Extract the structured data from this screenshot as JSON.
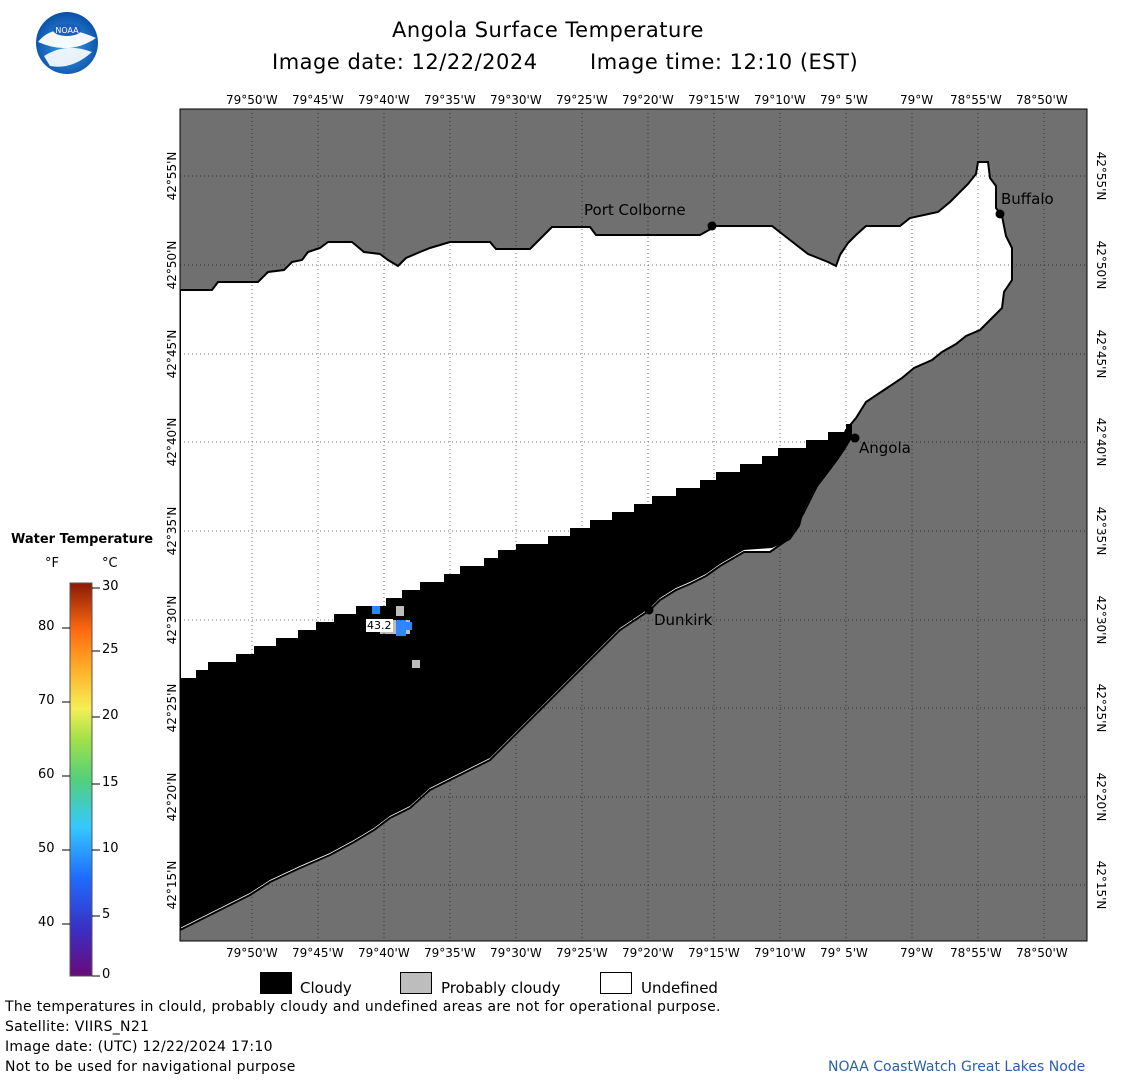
{
  "header": {
    "title": "Angola Surface Temperature",
    "image_date_label": "Image date: 12/22/2024",
    "image_time_label": "Image time: 12:10 (EST)"
  },
  "map": {
    "lon_ticks": [
      "79°50'W",
      "79°45'W",
      "79°40'W",
      "79°35'W",
      "79°30'W",
      "79°25'W",
      "79°20'W",
      "79°15'W",
      "79°10'W",
      "79° 5'W",
      "79°W",
      "78°55'W",
      "78°50'W"
    ],
    "lat_ticks": [
      "42°55'N",
      "42°50'N",
      "42°45'N",
      "42°40'N",
      "42°35'N",
      "42°30'N",
      "42°25'N",
      "42°20'N",
      "42°15'N"
    ],
    "places": [
      "Port Colborne",
      "Buffalo",
      "Angola",
      "Dunkirk"
    ],
    "data_label": "43.2",
    "colors": {
      "land": "#707070",
      "cloudy": "#000000",
      "probably_cloudy": "#bdbdbd",
      "undefined": "#ffffff",
      "water": "#2e87ff"
    }
  },
  "scale": {
    "title": "Water Temperature",
    "unit_f": "°F",
    "unit_c": "°C",
    "f_ticks": [
      "80",
      "70",
      "60",
      "50",
      "40"
    ],
    "c_ticks": [
      "30",
      "25",
      "20",
      "15",
      "10",
      "5",
      "0"
    ]
  },
  "legend": {
    "cloudy": "Cloudy",
    "probably_cloudy": "Probably cloudy",
    "undefined": "Undefined"
  },
  "footer": {
    "disclaimer": "The temperatures in clould, probably cloudy and undefined areas are not for operational purpose.",
    "satellite": "Satellite: VIIRS_N21",
    "utc_date": "Image date: (UTC) 12/22/2024  17:10",
    "navigation": "Not to be used for navigational purpose",
    "credit": "NOAA CoastWatch Great Lakes Node"
  }
}
